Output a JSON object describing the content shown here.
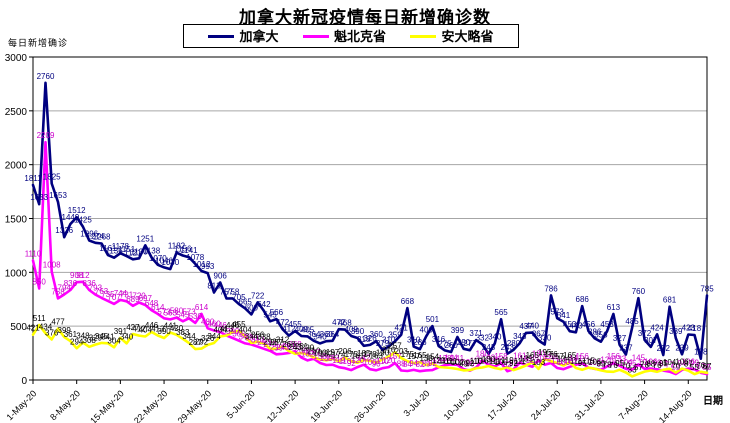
{
  "chart_data": {
    "type": "line",
    "title": "加拿大新冠疫情每日新增确诊数",
    "y_axis_title": "每日新增确诊",
    "x_axis_title": "日期",
    "ylim": [
      0,
      3000
    ],
    "y_ticks": [
      0,
      500,
      1000,
      1500,
      2000,
      2500,
      3000
    ],
    "grid": "horizontal gridlines on",
    "legend_position": "top-center boxed",
    "point_labels": "every data point labeled with its value",
    "x_start": "1-May-20",
    "x_end": "17-Aug-20",
    "x_frequency": "daily",
    "x_tick_interval_days": 7,
    "x_tick_labels": [
      "1-May-20",
      "8-May-20",
      "15-May-20",
      "22-May-20",
      "29-May-20",
      "5-Jun-20",
      "12-Jun-20",
      "19-Jun-20",
      "26-Jun-20",
      "3-Jul-20",
      "10-Jul-20",
      "17-Jul-20",
      "24-Jul-20",
      "31-Jul-20",
      "7-Aug-20",
      "14-Aug-20"
    ],
    "colors": {
      "plot_background": "#ffffff",
      "grid": "#a6a6a6",
      "axis": "#000000",
      "title": "#000000"
    },
    "series": [
      {
        "id": "canada",
        "name": "加拿大",
        "color": "#000080",
        "label_color": "#000080",
        "values": [
          1811,
          1633,
          2760,
          1825,
          1653,
          1326,
          1449,
          1512,
          1425,
          1296,
          1274,
          1268,
          1161,
          1136,
          1178,
          1151,
          1121,
          1130,
          1251,
          1138,
          1070,
          1046,
          1030,
          1182,
          1156,
          1141,
          1078,
          1012,
          993,
          813,
          906,
          757,
          758,
          705,
          665,
          609,
          722,
          642,
          545,
          566,
          472,
          412,
          455,
          409,
          405,
          364,
          340,
          360,
          364,
          472,
          468,
          409,
          390,
          318,
          326,
          360,
          279,
          310,
          359,
          421,
          668,
          310,
          286,
          406,
          501,
          316,
          275,
          260,
          399,
          290,
          277,
          371,
          332,
          243,
          340,
          565,
          243,
          280,
          343,
          437,
          440,
          367,
          330,
          786,
          573,
          541,
          453,
          443,
          686,
          456,
          386,
          356,
          453,
          613,
          327,
          237,
          485,
          760,
          372,
          307,
          424,
          232,
          681,
          389,
          239,
          423,
          418,
          198,
          785
        ]
      },
      {
        "id": "quebec",
        "name": "魁北克省",
        "color": "#ff00ff",
        "label_color": "#cc00cc",
        "values": [
          1110,
          850,
          2209,
          1008,
          758,
          794,
          836,
          908,
          912,
          836,
          793,
          763,
          735,
          707,
          744,
          731,
          689,
          720,
          697,
          648,
          614,
          573,
          563,
          580,
          545,
          573,
          530,
          614,
          480,
          460,
          446,
          413,
          390,
          365,
          340,
          330,
          310,
          290,
          270,
          239,
          243,
          251,
          268,
          208,
          182,
          197,
          158,
          139,
          142,
          119,
          110,
          92,
          120,
          142,
          100,
          90,
          110,
          120,
          157,
          88,
          84,
          94,
          82,
          89,
          92,
          118,
          138,
          144,
          141,
          100,
          86,
          115,
          180,
          142,
          125,
          158,
          82,
          99,
          161,
          141,
          123,
          180,
          142,
          158,
          111,
          100,
          123,
          141,
          156,
          115,
          104,
          95,
          126,
          156,
          133,
          104,
          95,
          145,
          104,
          106,
          99,
          87,
          77,
          55,
          94,
          106,
          99,
          67,
          55
        ]
      },
      {
        "id": "ontario",
        "name": "安大略省",
        "color": "#ffff00",
        "label_color": "#000000",
        "values": [
          421,
          511,
          434,
          376,
          477,
          399,
          361,
          294,
          348,
          308,
          329,
          345,
          341,
          304,
          391,
          340,
          427,
          412,
          404,
          446,
          413,
          390,
          441,
          420,
          383,
          344,
          287,
          292,
          326,
          344,
          404,
          413,
          446,
          455,
          404,
          344,
          356,
          338,
          292,
          287,
          312,
          268,
          243,
          251,
          239,
          210,
          190,
          182,
          197,
          174,
          206,
          175,
          161,
          185,
          178,
          163,
          190,
          216,
          257,
          203,
          175,
          157,
          165,
          138,
          154,
          121,
          116,
          111,
          102,
          89,
          92,
          110,
          116,
          130,
          111,
          100,
          119,
          92,
          111,
          135,
          165,
          103,
          195,
          176,
          157,
          134,
          165,
          111,
          95,
          115,
          105,
          89,
          78,
          76,
          95,
          70,
          33,
          57,
          78,
          88,
          76,
          95,
          104,
          70,
          106,
          87,
          55,
          76,
          67
        ]
      }
    ]
  }
}
